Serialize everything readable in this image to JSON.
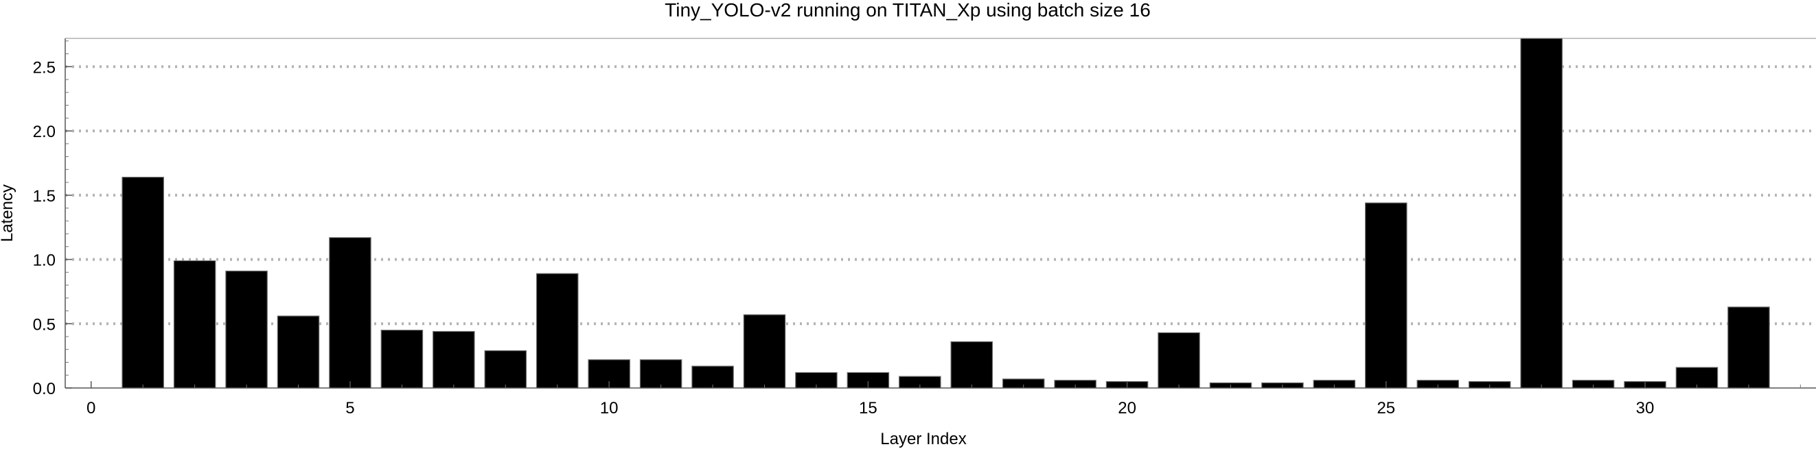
{
  "chart_data": {
    "type": "bar",
    "title": "Tiny_YOLO-v2 running on TITAN_Xp using batch size 16",
    "xlabel": "Layer Index",
    "ylabel": "Latency",
    "x": [
      1,
      2,
      3,
      4,
      5,
      6,
      7,
      8,
      9,
      10,
      11,
      12,
      13,
      14,
      15,
      16,
      17,
      18,
      19,
      20,
      21,
      22,
      23,
      24,
      25,
      26,
      27,
      28,
      29,
      30,
      31,
      32
    ],
    "values": [
      1.64,
      0.99,
      0.91,
      0.56,
      1.17,
      0.45,
      0.44,
      0.29,
      0.89,
      0.22,
      0.22,
      0.17,
      0.57,
      0.12,
      0.12,
      0.09,
      0.36,
      0.07,
      0.06,
      0.05,
      0.43,
      0.04,
      0.04,
      0.06,
      1.44,
      0.06,
      0.05,
      2.72,
      0.06,
      0.05,
      0.16,
      0.63
    ],
    "xlim": [
      -0.5,
      33.3
    ],
    "ylim": [
      0,
      2.72
    ],
    "xticks": [
      0,
      5,
      10,
      15,
      20,
      25,
      30
    ],
    "yticks": [
      0.0,
      0.5,
      1.0,
      1.5,
      2.0,
      2.5
    ],
    "ytick_labels": [
      "0.0",
      "0.5",
      "1.0",
      "1.5",
      "2.0",
      "2.5"
    ],
    "grid": "horizontal-dotted",
    "bar_color": "#000000",
    "grid_color": "#b3b3b3"
  }
}
